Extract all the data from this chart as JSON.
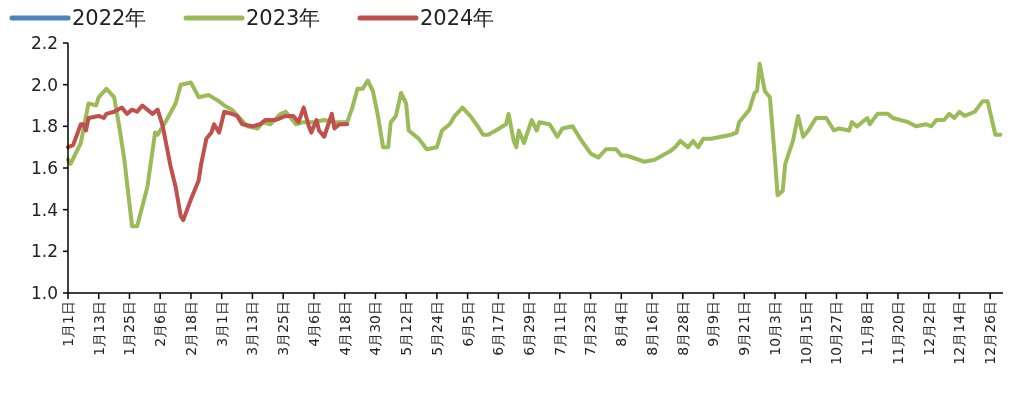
{
  "chart_data": {
    "type": "line",
    "legend": "top left",
    "grid": false,
    "marker": "none",
    "line_style": "solid",
    "xlim": [
      "--01-01",
      "--12-31"
    ],
    "xticks": [
      {
        "value": "--01-01",
        "label": "1月1日"
      },
      {
        "value": "--01-13",
        "label": "1月13日"
      },
      {
        "value": "--01-25",
        "label": "1月25日"
      },
      {
        "value": "--02-06",
        "label": "2月6日"
      },
      {
        "value": "--02-18",
        "label": "2月18日"
      },
      {
        "value": "--03-01",
        "label": "3月1日"
      },
      {
        "value": "--03-13",
        "label": "3月13日"
      },
      {
        "value": "--03-25",
        "label": "3月25日"
      },
      {
        "value": "--04-06",
        "label": "4月6日"
      },
      {
        "value": "--04-18",
        "label": "4月18日"
      },
      {
        "value": "--04-30",
        "label": "4月30日"
      },
      {
        "value": "--05-12",
        "label": "5月12日"
      },
      {
        "value": "--05-24",
        "label": "5月24日"
      },
      {
        "value": "--06-05",
        "label": "6月5日"
      },
      {
        "value": "--06-17",
        "label": "6月17日"
      },
      {
        "value": "--06-29",
        "label": "6月29日"
      },
      {
        "value": "--07-11",
        "label": "7月11日"
      },
      {
        "value": "--07-23",
        "label": "7月23日"
      },
      {
        "value": "--08-04",
        "label": "8月4日"
      },
      {
        "value": "--08-16",
        "label": "8月16日"
      },
      {
        "value": "--08-28",
        "label": "8月28日"
      },
      {
        "value": "--09-09",
        "label": "9月9日"
      },
      {
        "value": "--09-21",
        "label": "9月21日"
      },
      {
        "value": "--10-03",
        "label": "10月3日"
      },
      {
        "value": "--10-15",
        "label": "10月15日"
      },
      {
        "value": "--10-27",
        "label": "10月27日"
      },
      {
        "value": "--11-08",
        "label": "11月8日"
      },
      {
        "value": "--11-20",
        "label": "11月20日"
      },
      {
        "value": "--12-02",
        "label": "12月2日"
      },
      {
        "value": "--12-14",
        "label": "12月14日"
      },
      {
        "value": "--12-26",
        "label": "12月26日"
      }
    ],
    "ylim": [
      1.0,
      2.2
    ],
    "yticks": [
      {
        "value": 1.0,
        "label": "1.0"
      },
      {
        "value": 1.2,
        "label": "1.2"
      },
      {
        "value": 1.4,
        "label": "1.4"
      },
      {
        "value": 1.6,
        "label": "1.6"
      },
      {
        "value": 1.8,
        "label": "1.8"
      },
      {
        "value": 2.0,
        "label": "2.0"
      },
      {
        "value": 2.2,
        "label": "2.2"
      }
    ],
    "series": [
      {
        "name": "2022年",
        "color": "#4f81bd"
      },
      {
        "name": "2023年",
        "color": "#9bbb59",
        "x": [
          "--01-01",
          "--01-02",
          "--01-06",
          "--01-09",
          "--01-12",
          "--01-13",
          "--01-16",
          "--01-19",
          "--01-21",
          "--01-23",
          "--01-26",
          "--01-28",
          "--02-01",
          "--02-04",
          "--02-05",
          "--02-08",
          "--02-12",
          "--02-14",
          "--02-18",
          "--02-21",
          "--02-25",
          "--02-29",
          "--03-02",
          "--03-05",
          "--03-11",
          "--03-15",
          "--03-17",
          "--03-20",
          "--03-24",
          "--03-26",
          "--03-30",
          "--04-02",
          "--04-06",
          "--04-10",
          "--04-14",
          "--04-19",
          "--04-21",
          "--04-23",
          "--04-25",
          "--04-27",
          "--04-29",
          "--05-01",
          "--05-03",
          "--05-05",
          "--05-06",
          "--05-08",
          "--05-10",
          "--05-12",
          "--05-13",
          "--05-17",
          "--05-20",
          "--05-24",
          "--05-26",
          "--05-29",
          "--05-31",
          "--06-03",
          "--06-06",
          "--06-09",
          "--06-11",
          "--06-13",
          "--06-16",
          "--06-20",
          "--06-21",
          "--06-23",
          "--06-24",
          "--06-25",
          "--06-27",
          "--06-30",
          "--07-02",
          "--07-03",
          "--07-07",
          "--07-10",
          "--07-12",
          "--07-16",
          "--07-19",
          "--07-23",
          "--07-26",
          "--07-29",
          "--08-02",
          "--08-04",
          "--08-06",
          "--08-13",
          "--08-17",
          "--08-20",
          "--08-23",
          "--08-25",
          "--08-27",
          "--08-30",
          "--09-01",
          "--09-03",
          "--09-05",
          "--09-08",
          "--09-12",
          "--09-16",
          "--09-18",
          "--09-19",
          "--09-23",
          "--09-25",
          "--09-26",
          "--09-27",
          "--09-29",
          "--10-01",
          "--10-03",
          "--10-04",
          "--10-06",
          "--10-07",
          "--10-10",
          "--10-12",
          "--10-14",
          "--10-16",
          "--10-19",
          "--10-23",
          "--10-26",
          "--10-28",
          "--11-01",
          "--11-02",
          "--11-04",
          "--11-08",
          "--11-09",
          "--11-12",
          "--11-16",
          "--11-18",
          "--11-24",
          "--11-27",
          "--12-01",
          "--12-03",
          "--12-05",
          "--12-08",
          "--12-10",
          "--12-12",
          "--12-14",
          "--12-16",
          "--12-20",
          "--12-23",
          "--12-25",
          "--12-28",
          "--12-30"
        ],
        "values": [
          1.64,
          1.62,
          1.72,
          1.91,
          1.9,
          1.94,
          1.98,
          1.94,
          1.8,
          1.64,
          1.32,
          1.32,
          1.51,
          1.77,
          1.76,
          1.82,
          1.91,
          2.0,
          2.01,
          1.94,
          1.95,
          1.92,
          1.9,
          1.88,
          1.8,
          1.79,
          1.82,
          1.81,
          1.86,
          1.87,
          1.81,
          1.82,
          1.82,
          1.83,
          1.82,
          1.82,
          1.89,
          1.98,
          1.98,
          2.02,
          1.97,
          1.85,
          1.7,
          1.7,
          1.82,
          1.85,
          1.96,
          1.91,
          1.78,
          1.74,
          1.69,
          1.7,
          1.78,
          1.81,
          1.85,
          1.89,
          1.85,
          1.8,
          1.76,
          1.76,
          1.78,
          1.81,
          1.86,
          1.73,
          1.7,
          1.78,
          1.72,
          1.83,
          1.78,
          1.82,
          1.81,
          1.75,
          1.79,
          1.8,
          1.74,
          1.67,
          1.65,
          1.69,
          1.69,
          1.66,
          1.66,
          1.63,
          1.64,
          1.66,
          1.68,
          1.7,
          1.73,
          1.7,
          1.73,
          1.7,
          1.74,
          1.74,
          1.75,
          1.76,
          1.77,
          1.82,
          1.88,
          1.96,
          1.97,
          2.1,
          1.97,
          1.94,
          1.64,
          1.47,
          1.49,
          1.62,
          1.73,
          1.85,
          1.75,
          1.78,
          1.84,
          1.84,
          1.78,
          1.79,
          1.78,
          1.82,
          1.8,
          1.84,
          1.81,
          1.86,
          1.86,
          1.84,
          1.82,
          1.8,
          1.81,
          1.8,
          1.83,
          1.83,
          1.86,
          1.84,
          1.87,
          1.85,
          1.87,
          1.92,
          1.92,
          1.76,
          1.76
        ]
      },
      {
        "name": "2024年",
        "color": "#c0504d",
        "x": [
          "--01-01",
          "--01-03",
          "--01-06",
          "--01-07",
          "--01-08",
          "--01-09",
          "--01-13",
          "--01-15",
          "--01-16",
          "--01-19",
          "--01-22",
          "--01-24",
          "--01-26",
          "--01-28",
          "--01-30",
          "--02-03",
          "--02-05",
          "--02-07",
          "--02-10",
          "--02-12",
          "--02-14",
          "--02-15",
          "--02-18",
          "--02-21",
          "--02-22",
          "--02-24",
          "--02-26",
          "--02-27",
          "--02-29",
          "--03-02",
          "--03-05",
          "--03-07",
          "--03-09",
          "--03-13",
          "--03-16",
          "--03-18",
          "--03-22",
          "--03-26",
          "--03-29",
          "--03-31",
          "--04-02",
          "--04-04",
          "--04-05",
          "--04-07",
          "--04-08",
          "--04-10",
          "--04-13",
          "--04-14",
          "--04-16",
          "--04-19"
        ],
        "values": [
          1.7,
          1.71,
          1.81,
          1.81,
          1.78,
          1.84,
          1.85,
          1.84,
          1.86,
          1.87,
          1.89,
          1.86,
          1.88,
          1.87,
          1.9,
          1.86,
          1.88,
          1.8,
          1.61,
          1.51,
          1.37,
          1.35,
          1.45,
          1.54,
          1.62,
          1.74,
          1.77,
          1.81,
          1.77,
          1.87,
          1.86,
          1.85,
          1.81,
          1.8,
          1.81,
          1.83,
          1.83,
          1.85,
          1.85,
          1.82,
          1.89,
          1.8,
          1.77,
          1.83,
          1.78,
          1.75,
          1.86,
          1.79,
          1.81,
          1.81
        ]
      }
    ]
  }
}
